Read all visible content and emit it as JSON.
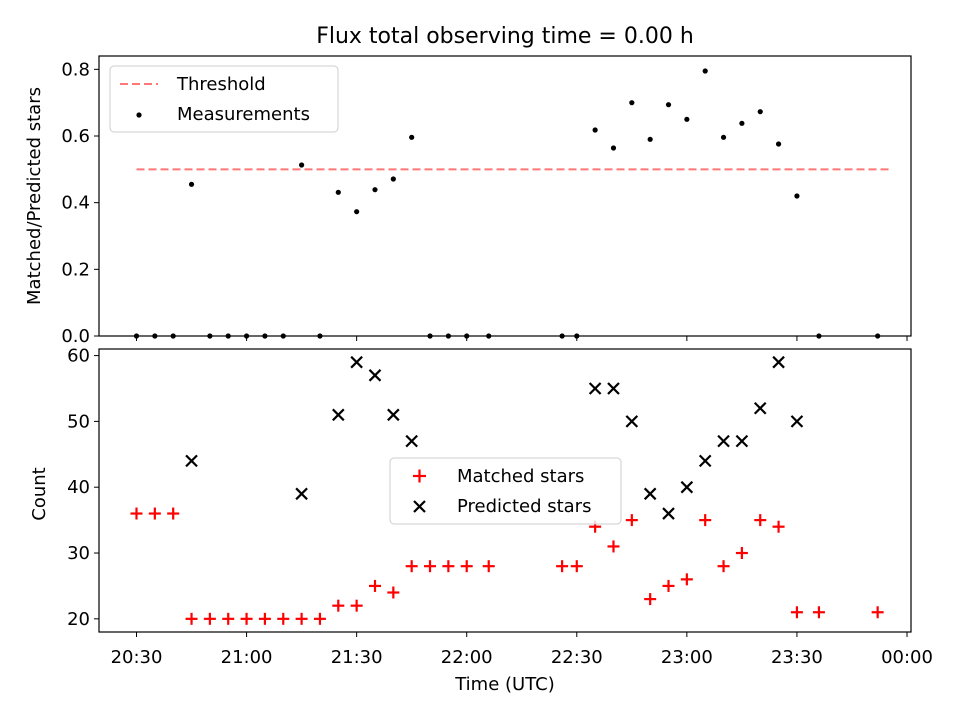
{
  "chart_data": [
    {
      "type": "scatter",
      "title": "Flux total observing time = 0.00 h",
      "xlabel": "",
      "ylabel": "Matched/Predicted stars",
      "ylim": [
        0,
        0.84
      ],
      "yticks": [
        "0.0",
        "0.2",
        "0.4",
        "0.6",
        "0.8"
      ],
      "ytick_values": [
        0,
        0.2,
        0.4,
        0.6,
        0.8
      ],
      "grid": false,
      "legend_position": "top-left",
      "threshold": {
        "name": "Threshold",
        "value": 0.5,
        "x_range": [
          "20:30",
          "23:55"
        ],
        "color": "#ff7777"
      },
      "series": [
        {
          "name": "Measurements",
          "color": "#000000",
          "points": [
            [
              "20:30",
              0.0
            ],
            [
              "20:35",
              0.0
            ],
            [
              "20:40",
              0.0
            ],
            [
              "20:45",
              0.455
            ],
            [
              "20:50",
              0.0
            ],
            [
              "20:55",
              0.0
            ],
            [
              "21:00",
              0.0
            ],
            [
              "21:05",
              0.0
            ],
            [
              "21:10",
              0.0
            ],
            [
              "21:15",
              0.513
            ],
            [
              "21:20",
              0.0
            ],
            [
              "21:25",
              0.431
            ],
            [
              "21:30",
              0.373
            ],
            [
              "21:35",
              0.439
            ],
            [
              "21:40",
              0.471
            ],
            [
              "21:45",
              0.596
            ],
            [
              "21:50",
              0.0
            ],
            [
              "21:55",
              0.0
            ],
            [
              "22:00",
              0.0
            ],
            [
              "22:06",
              0.0
            ],
            [
              "22:26",
              0.0
            ],
            [
              "22:30",
              0.0
            ],
            [
              "22:35",
              0.618
            ],
            [
              "22:40",
              0.564
            ],
            [
              "22:45",
              0.7
            ],
            [
              "22:50",
              0.59
            ],
            [
              "22:55",
              0.694
            ],
            [
              "23:00",
              0.65
            ],
            [
              "23:05",
              0.795
            ],
            [
              "23:10",
              0.596
            ],
            [
              "23:15",
              0.638
            ],
            [
              "23:20",
              0.673
            ],
            [
              "23:25",
              0.576
            ],
            [
              "23:30",
              0.42
            ],
            [
              "23:36",
              0.0
            ],
            [
              "23:52",
              0.0
            ]
          ]
        }
      ]
    },
    {
      "type": "scatter",
      "title": "",
      "xlabel": "Time (UTC)",
      "ylabel": "Count",
      "ylim": [
        18,
        61
      ],
      "yticks": [
        "20",
        "30",
        "40",
        "50",
        "60"
      ],
      "ytick_values": [
        20,
        30,
        40,
        50,
        60
      ],
      "xlim": [
        "20:21",
        "00:00"
      ],
      "xticks": [
        "20:30",
        "21:00",
        "21:30",
        "22:00",
        "22:30",
        "23:00",
        "23:30",
        "00:00"
      ],
      "grid": false,
      "legend_position": "center",
      "series": [
        {
          "name": "Matched stars",
          "marker": "plus",
          "color": "#ff0000",
          "points": [
            [
              "20:30",
              36
            ],
            [
              "20:35",
              36
            ],
            [
              "20:40",
              36
            ],
            [
              "20:45",
              20
            ],
            [
              "20:50",
              20
            ],
            [
              "20:55",
              20
            ],
            [
              "21:00",
              20
            ],
            [
              "21:05",
              20
            ],
            [
              "21:10",
              20
            ],
            [
              "21:15",
              20
            ],
            [
              "21:20",
              20
            ],
            [
              "21:25",
              22
            ],
            [
              "21:30",
              22
            ],
            [
              "21:35",
              25
            ],
            [
              "21:40",
              24
            ],
            [
              "21:45",
              28
            ],
            [
              "21:50",
              28
            ],
            [
              "21:55",
              28
            ],
            [
              "22:00",
              28
            ],
            [
              "22:06",
              28
            ],
            [
              "22:26",
              28
            ],
            [
              "22:30",
              28
            ],
            [
              "22:35",
              34
            ],
            [
              "22:40",
              31
            ],
            [
              "22:45",
              35
            ],
            [
              "22:50",
              23
            ],
            [
              "22:55",
              25
            ],
            [
              "23:00",
              26
            ],
            [
              "23:05",
              35
            ],
            [
              "23:10",
              28
            ],
            [
              "23:15",
              30
            ],
            [
              "23:20",
              35
            ],
            [
              "23:25",
              34
            ],
            [
              "23:30",
              21
            ],
            [
              "23:36",
              21
            ],
            [
              "23:52",
              21
            ]
          ]
        },
        {
          "name": "Predicted stars",
          "marker": "x",
          "color": "#000000",
          "points": [
            [
              "20:45",
              44
            ],
            [
              "21:15",
              39
            ],
            [
              "21:25",
              51
            ],
            [
              "21:30",
              59
            ],
            [
              "21:35",
              57
            ],
            [
              "21:40",
              51
            ],
            [
              "21:45",
              47
            ],
            [
              "22:35",
              55
            ],
            [
              "22:40",
              55
            ],
            [
              "22:45",
              50
            ],
            [
              "22:50",
              39
            ],
            [
              "22:55",
              36
            ],
            [
              "23:00",
              40
            ],
            [
              "23:05",
              44
            ],
            [
              "23:10",
              47
            ],
            [
              "23:15",
              47
            ],
            [
              "23:20",
              52
            ],
            [
              "23:25",
              59
            ],
            [
              "23:30",
              50
            ]
          ]
        }
      ]
    }
  ]
}
